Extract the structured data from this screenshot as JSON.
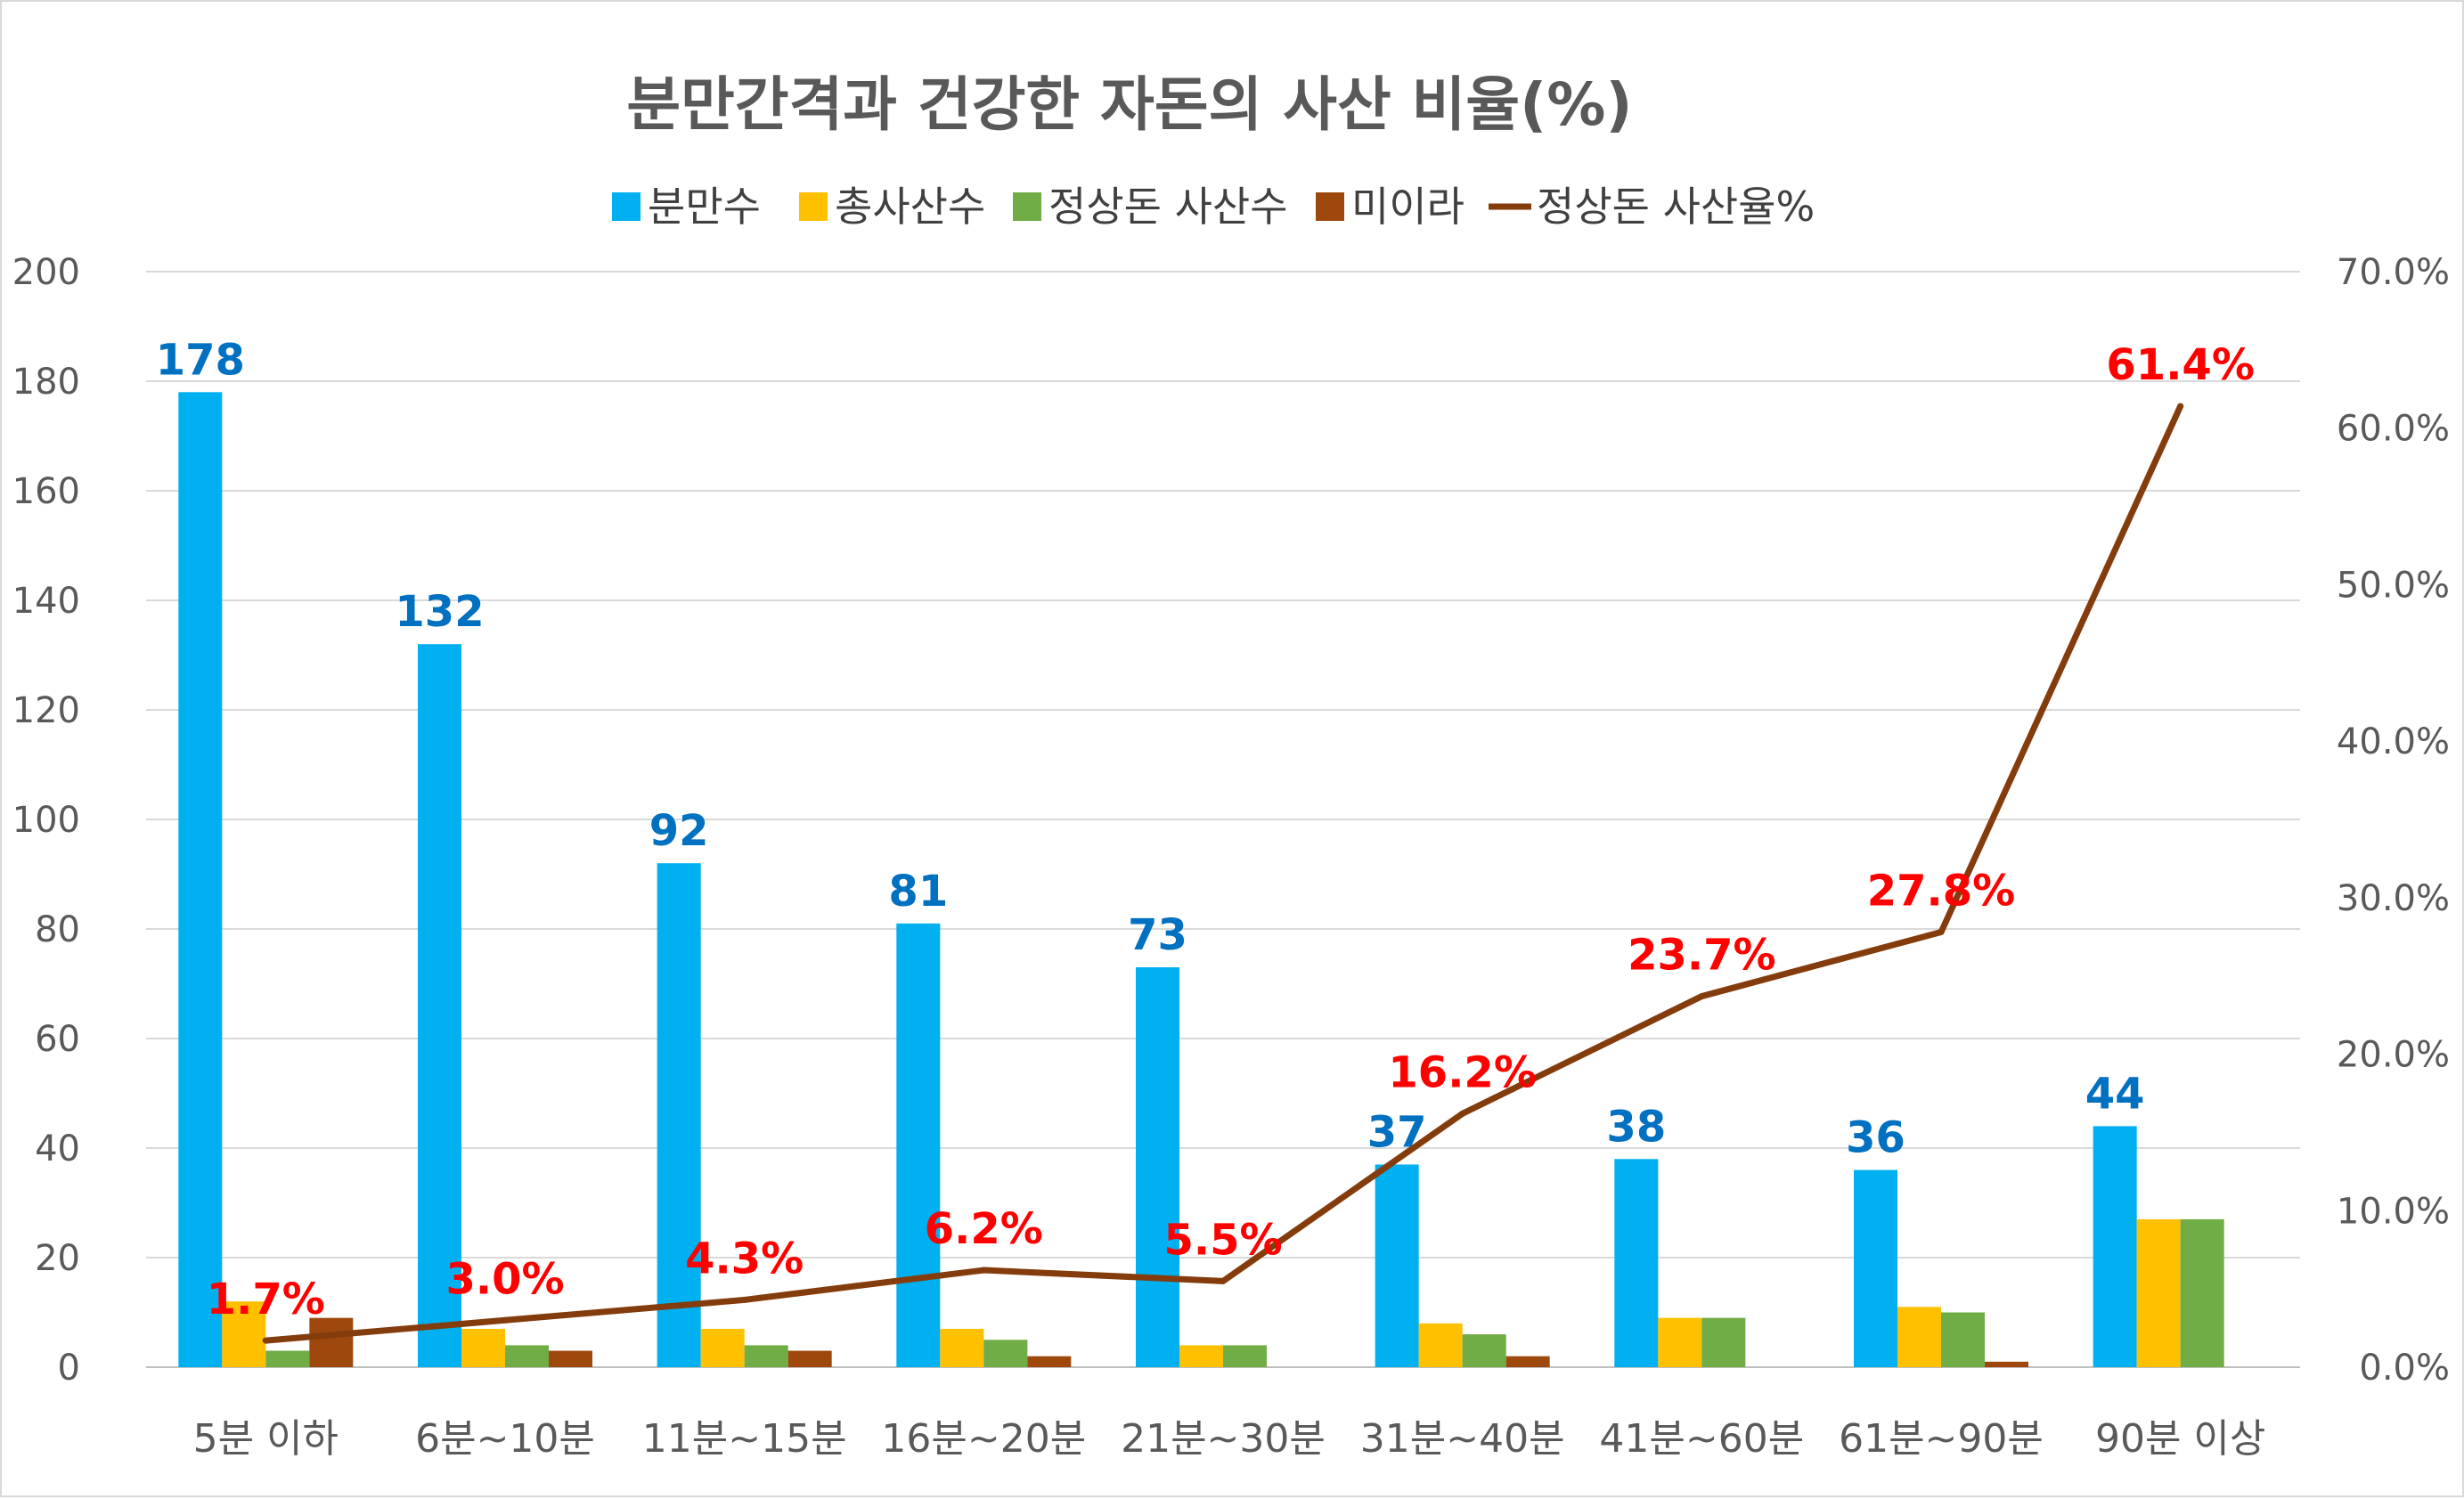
{
  "chart_data": {
    "type": "bar",
    "title": "분만간격과 건강한 자돈의 사산 비율(%)",
    "categories": [
      "5분 이하",
      "6분~10분",
      "11분~15분",
      "16분~20분",
      "21분~30분",
      "31분~40분",
      "41분~60분",
      "61분~90분",
      "90분 이상"
    ],
    "series": [
      {
        "name": "분만수",
        "kind": "bar",
        "color": "#00b0f0",
        "values": [
          178,
          132,
          92,
          81,
          73,
          37,
          38,
          36,
          44
        ]
      },
      {
        "name": "총사산수",
        "kind": "bar",
        "color": "#ffc000",
        "values": [
          12,
          7,
          7,
          7,
          4,
          8,
          9,
          11,
          27
        ]
      },
      {
        "name": "정상돈 사산수",
        "kind": "bar",
        "color": "#70ad47",
        "values": [
          3,
          4,
          4,
          5,
          4,
          6,
          9,
          10,
          27
        ]
      },
      {
        "name": "미이라",
        "kind": "bar",
        "color": "#9e480e",
        "values": [
          9,
          3,
          3,
          2,
          0,
          2,
          0,
          1,
          0
        ]
      },
      {
        "name": "정상돈 사산율%",
        "kind": "line",
        "axis": "right",
        "color": "#843c0c",
        "values": [
          1.7,
          3.0,
          4.3,
          6.2,
          5.5,
          16.2,
          23.7,
          27.8,
          61.4
        ]
      }
    ],
    "bar_data_labels": [
      "178",
      "132",
      "92",
      "81",
      "73",
      "37",
      "38",
      "36",
      "44"
    ],
    "line_data_labels": [
      "1.7%",
      "3.0%",
      "4.3%",
      "6.2%",
      "5.5%",
      "16.2%",
      "23.7%",
      "27.8%",
      "61.4%"
    ],
    "yaxis_left": {
      "min": 0,
      "max": 200,
      "step": 20,
      "ticks": [
        "0",
        "20",
        "40",
        "60",
        "80",
        "100",
        "120",
        "140",
        "160",
        "180",
        "200"
      ]
    },
    "yaxis_right": {
      "min": 0,
      "max": 70,
      "step": 10,
      "ticks": [
        "0.0%",
        "10.0%",
        "20.0%",
        "30.0%",
        "40.0%",
        "50.0%",
        "60.0%",
        "70.0%"
      ]
    },
    "grid": true,
    "legend_position": "top",
    "colors": {
      "bar_label": "#0070c0",
      "line_label": "#ff0000",
      "title": "#595959",
      "axis_text": "#595959",
      "gridline": "#d9d9d9"
    }
  }
}
